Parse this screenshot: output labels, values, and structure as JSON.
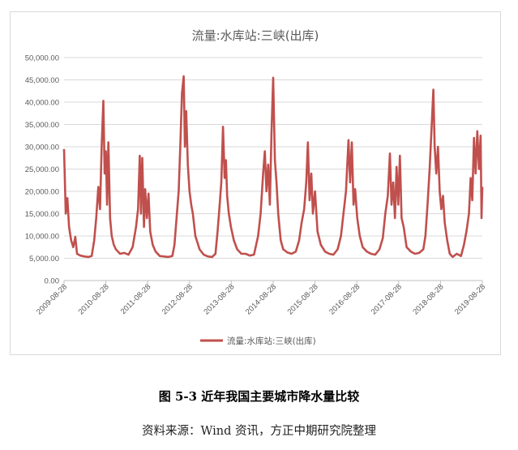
{
  "chart_data": {
    "type": "line",
    "title": "流量:水库站:三峡(出库)",
    "xlabel": "",
    "ylabel": "",
    "ylim": [
      0,
      50000
    ],
    "y_ticks": [
      "0.00",
      "5,000.00",
      "10,000.00",
      "15,000.00",
      "20,000.00",
      "25,000.00",
      "30,000.00",
      "35,000.00",
      "40,000.00",
      "45,000.00",
      "50,000.00"
    ],
    "x_ticks": [
      "2009-08-28",
      "2010-08-28",
      "2011-08-28",
      "2012-08-28",
      "2013-08-28",
      "2014-08-28",
      "2015-08-28",
      "2016-08-28",
      "2017-08-28",
      "2018-08-28",
      "2019-08-28"
    ],
    "xlim": [
      2009.66,
      2019.66
    ],
    "grid": true,
    "legend_position": "bottom",
    "series": [
      {
        "name": "流量:水库站:三峡(出库)",
        "color": "#c0504d",
        "points": [
          [
            2009.66,
            29500
          ],
          [
            2009.7,
            15000
          ],
          [
            2009.74,
            18500
          ],
          [
            2009.78,
            12000
          ],
          [
            2009.83,
            9000
          ],
          [
            2009.88,
            7500
          ],
          [
            2009.93,
            9800
          ],
          [
            2009.97,
            6000
          ],
          [
            2010.05,
            5600
          ],
          [
            2010.15,
            5400
          ],
          [
            2010.25,
            5300
          ],
          [
            2010.32,
            5500
          ],
          [
            2010.38,
            9000
          ],
          [
            2010.43,
            14000
          ],
          [
            2010.48,
            21000
          ],
          [
            2010.52,
            16000
          ],
          [
            2010.56,
            30000
          ],
          [
            2010.6,
            40300
          ],
          [
            2010.63,
            24000
          ],
          [
            2010.66,
            29000
          ],
          [
            2010.69,
            17000
          ],
          [
            2010.72,
            31000
          ],
          [
            2010.76,
            14000
          ],
          [
            2010.8,
            10000
          ],
          [
            2010.85,
            8000
          ],
          [
            2010.9,
            7000
          ],
          [
            2011.0,
            6000
          ],
          [
            2011.1,
            6200
          ],
          [
            2011.2,
            5800
          ],
          [
            2011.3,
            7500
          ],
          [
            2011.38,
            12000
          ],
          [
            2011.43,
            16000
          ],
          [
            2011.47,
            28000
          ],
          [
            2011.5,
            15000
          ],
          [
            2011.53,
            27500
          ],
          [
            2011.57,
            12000
          ],
          [
            2011.6,
            20500
          ],
          [
            2011.64,
            14000
          ],
          [
            2011.68,
            19500
          ],
          [
            2011.72,
            11000
          ],
          [
            2011.78,
            8000
          ],
          [
            2011.85,
            6500
          ],
          [
            2011.95,
            5500
          ],
          [
            2012.05,
            5400
          ],
          [
            2012.15,
            5300
          ],
          [
            2012.25,
            5500
          ],
          [
            2012.3,
            8000
          ],
          [
            2012.35,
            14000
          ],
          [
            2012.4,
            20000
          ],
          [
            2012.44,
            30000
          ],
          [
            2012.48,
            42000
          ],
          [
            2012.52,
            45800
          ],
          [
            2012.55,
            30000
          ],
          [
            2012.58,
            38000
          ],
          [
            2012.62,
            26000
          ],
          [
            2012.66,
            20000
          ],
          [
            2012.7,
            17000
          ],
          [
            2012.74,
            15000
          ],
          [
            2012.8,
            10000
          ],
          [
            2012.9,
            7000
          ],
          [
            2013.0,
            5800
          ],
          [
            2013.1,
            5400
          ],
          [
            2013.2,
            5300
          ],
          [
            2013.28,
            6000
          ],
          [
            2013.33,
            11000
          ],
          [
            2013.38,
            17000
          ],
          [
            2013.42,
            22000
          ],
          [
            2013.46,
            34500
          ],
          [
            2013.5,
            23000
          ],
          [
            2013.53,
            27000
          ],
          [
            2013.56,
            19000
          ],
          [
            2013.6,
            15000
          ],
          [
            2013.65,
            12000
          ],
          [
            2013.72,
            9000
          ],
          [
            2013.8,
            7000
          ],
          [
            2013.9,
            6000
          ],
          [
            2014.0,
            6000
          ],
          [
            2014.1,
            5600
          ],
          [
            2014.2,
            5800
          ],
          [
            2014.3,
            10000
          ],
          [
            2014.36,
            15000
          ],
          [
            2014.42,
            24000
          ],
          [
            2014.46,
            29000
          ],
          [
            2014.5,
            20000
          ],
          [
            2014.54,
            26000
          ],
          [
            2014.58,
            17000
          ],
          [
            2014.62,
            33000
          ],
          [
            2014.66,
            45500
          ],
          [
            2014.7,
            27000
          ],
          [
            2014.74,
            22000
          ],
          [
            2014.78,
            15000
          ],
          [
            2014.84,
            9000
          ],
          [
            2014.9,
            7000
          ],
          [
            2015.0,
            6300
          ],
          [
            2015.1,
            6000
          ],
          [
            2015.2,
            6500
          ],
          [
            2015.28,
            9000
          ],
          [
            2015.34,
            13000
          ],
          [
            2015.4,
            16000
          ],
          [
            2015.45,
            22000
          ],
          [
            2015.49,
            31000
          ],
          [
            2015.53,
            18000
          ],
          [
            2015.57,
            24000
          ],
          [
            2015.61,
            15000
          ],
          [
            2015.66,
            20000
          ],
          [
            2015.72,
            11000
          ],
          [
            2015.8,
            8000
          ],
          [
            2015.9,
            6500
          ],
          [
            2016.0,
            6000
          ],
          [
            2016.1,
            5800
          ],
          [
            2016.2,
            7000
          ],
          [
            2016.28,
            10000
          ],
          [
            2016.34,
            15000
          ],
          [
            2016.4,
            20000
          ],
          [
            2016.46,
            31500
          ],
          [
            2016.5,
            22000
          ],
          [
            2016.54,
            31000
          ],
          [
            2016.58,
            17000
          ],
          [
            2016.62,
            20500
          ],
          [
            2016.67,
            14000
          ],
          [
            2016.73,
            10000
          ],
          [
            2016.8,
            7500
          ],
          [
            2016.9,
            6500
          ],
          [
            2017.0,
            6000
          ],
          [
            2017.1,
            5800
          ],
          [
            2017.2,
            7000
          ],
          [
            2017.28,
            9500
          ],
          [
            2017.34,
            15000
          ],
          [
            2017.4,
            19000
          ],
          [
            2017.45,
            28500
          ],
          [
            2017.49,
            17000
          ],
          [
            2017.53,
            22000
          ],
          [
            2017.57,
            14000
          ],
          [
            2017.61,
            25500
          ],
          [
            2017.65,
            17000
          ],
          [
            2017.69,
            28000
          ],
          [
            2017.73,
            14000
          ],
          [
            2017.78,
            12000
          ],
          [
            2017.85,
            7500
          ],
          [
            2017.95,
            6500
          ],
          [
            2018.05,
            6000
          ],
          [
            2018.15,
            6200
          ],
          [
            2018.25,
            7000
          ],
          [
            2018.3,
            10000
          ],
          [
            2018.35,
            17000
          ],
          [
            2018.4,
            25000
          ],
          [
            2018.45,
            35000
          ],
          [
            2018.49,
            42800
          ],
          [
            2018.52,
            30000
          ],
          [
            2018.56,
            24000
          ],
          [
            2018.6,
            30000
          ],
          [
            2018.64,
            20000
          ],
          [
            2018.68,
            16000
          ],
          [
            2018.72,
            19000
          ],
          [
            2018.76,
            13000
          ],
          [
            2018.82,
            9000
          ],
          [
            2018.88,
            6000
          ],
          [
            2018.95,
            5300
          ],
          [
            2019.05,
            6000
          ],
          [
            2019.15,
            5500
          ],
          [
            2019.22,
            8000
          ],
          [
            2019.28,
            11000
          ],
          [
            2019.34,
            15000
          ],
          [
            2019.38,
            23000
          ],
          [
            2019.42,
            18000
          ],
          [
            2019.46,
            32000
          ],
          [
            2019.5,
            24000
          ],
          [
            2019.54,
            33500
          ],
          [
            2019.58,
            25000
          ],
          [
            2019.62,
            32500
          ],
          [
            2019.64,
            14000
          ],
          [
            2019.66,
            21000
          ]
        ]
      }
    ]
  },
  "caption": "图 5-3  近年我国主要城市降水量比较",
  "source": "资料来源：Wind 资讯，方正中期研究院整理"
}
